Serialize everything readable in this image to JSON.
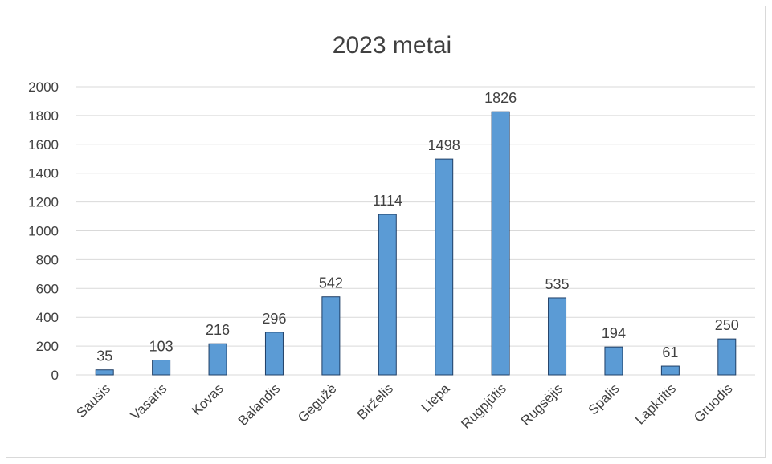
{
  "chart_data": {
    "type": "bar",
    "title": "2023 metai",
    "xlabel": "",
    "ylabel": "",
    "categories": [
      "Sausis",
      "Vasaris",
      "Kovas",
      "Balandis",
      "Gegužė",
      "Birželis",
      "Liepa",
      "Rugpjūtis",
      "Rugsėjis",
      "Spalis",
      "Lapkritis",
      "Gruodis"
    ],
    "values": [
      35,
      103,
      216,
      296,
      542,
      1114,
      1498,
      1826,
      535,
      194,
      61,
      250
    ],
    "ylim": [
      0,
      2000
    ],
    "yticks": [
      0,
      200,
      400,
      600,
      800,
      1000,
      1200,
      1400,
      1600,
      1800,
      2000
    ],
    "grid": true,
    "legend": "none",
    "bar_color": "#5b9bd5",
    "bar_edge_color": "#1f3f66"
  }
}
